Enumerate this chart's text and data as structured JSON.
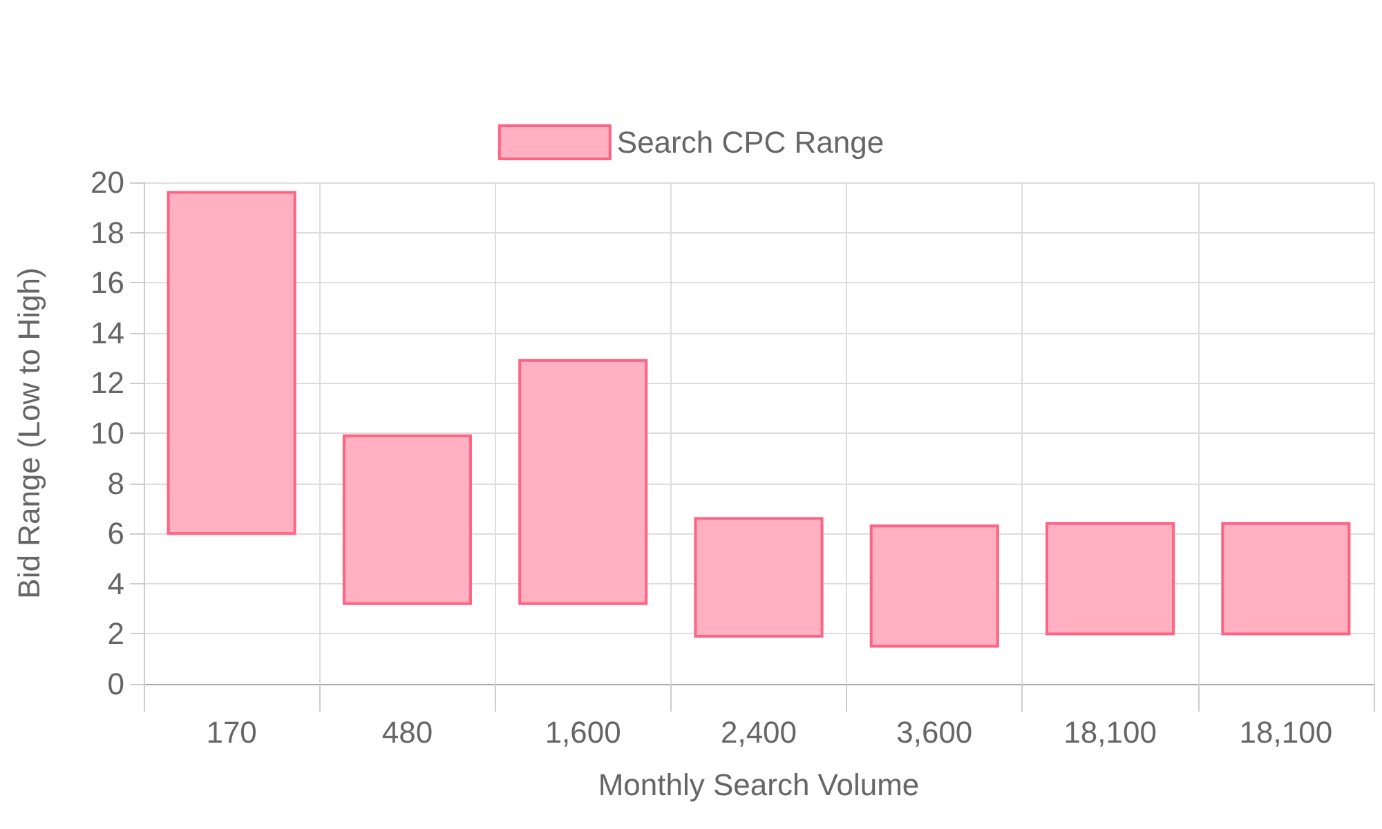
{
  "chart_data": {
    "type": "bar",
    "xlabel": "Monthly Search Volume",
    "ylabel": "Bid Range (Low to High)",
    "categories": [
      "170",
      "480",
      "1,600",
      "2,400",
      "3,600",
      "18,100",
      "18,100"
    ],
    "series": [
      {
        "name": "Search CPC Range",
        "color": "#ffb1c1",
        "base": [
          6,
          3.2,
          3.2,
          1.9,
          1.5,
          2,
          2
        ],
        "values": [
          13.6,
          6.7,
          9.7,
          4.7,
          4.8,
          4.4,
          4.4
        ]
      }
    ],
    "ylim": [
      0,
      20
    ],
    "yticks": [
      0,
      2,
      4,
      6,
      8,
      10,
      12,
      14,
      16,
      18,
      20
    ],
    "grid": true,
    "legend": "top"
  }
}
